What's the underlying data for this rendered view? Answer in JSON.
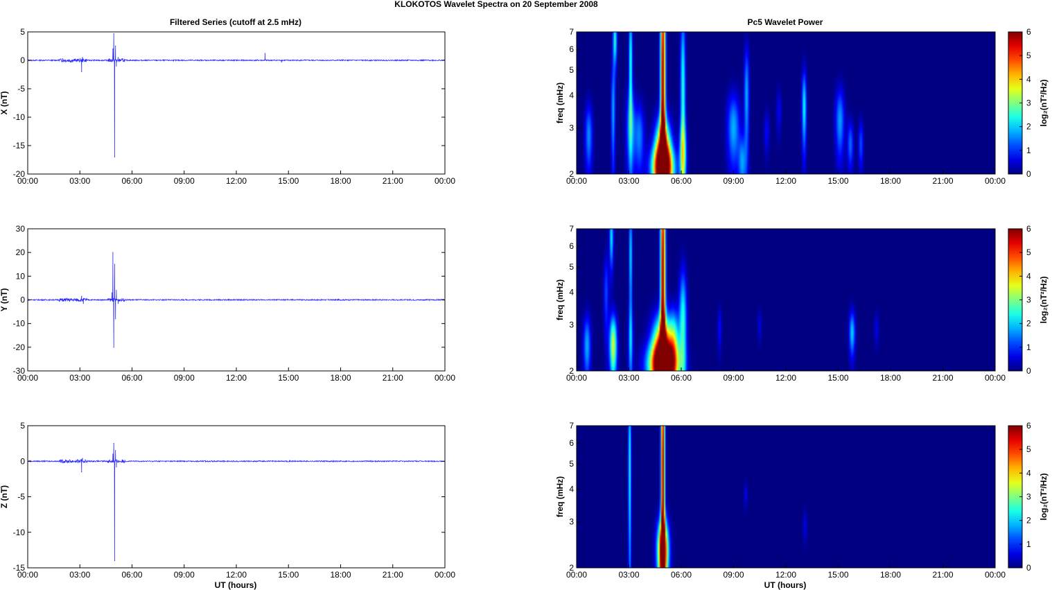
{
  "figure": {
    "title": "KLOKOTOS Wavelet Spectra on 20 September 2008",
    "left_column_title": "Filtered Series (cutoff at 2.5 mHz)",
    "right_column_title": "Pc5 Wavelet Power",
    "x_axis_label": "UT (hours)"
  },
  "colors": {
    "trace": "#2a2aff",
    "spectrum_background": "#00008f"
  },
  "chart_data": [
    {
      "id": "x-series",
      "type": "line",
      "ylabel": "X (nT)",
      "x_ticks": [
        "00:00",
        "03:00",
        "06:00",
        "09:00",
        "12:00",
        "15:00",
        "18:00",
        "21:00",
        "00:00"
      ],
      "xlim": [
        0,
        24
      ],
      "ylim": [
        -20,
        5
      ],
      "y_ticks": [
        5,
        0,
        -5,
        -10,
        -15,
        -20
      ],
      "grid": false,
      "series": [
        {
          "x": [
            0,
            2.0,
            2.5,
            3.1,
            3.15,
            3.2,
            4.9,
            4.95,
            5.0,
            5.05,
            5.1,
            5.2,
            5.3,
            13.6,
            13.65,
            14.6,
            24
          ],
          "values": [
            0,
            0.3,
            -0.3,
            -2.0,
            0.5,
            0,
            2.0,
            4.7,
            -17.0,
            2.5,
            -1.0,
            0.5,
            0,
            0,
            1.2,
            -0.3,
            0
          ]
        }
      ]
    },
    {
      "id": "y-series",
      "type": "line",
      "ylabel": "Y (nT)",
      "x_ticks": [
        "00:00",
        "03:00",
        "06:00",
        "09:00",
        "12:00",
        "15:00",
        "18:00",
        "21:00",
        "00:00"
      ],
      "xlim": [
        0,
        24
      ],
      "ylim": [
        -30,
        30
      ],
      "y_ticks": [
        30,
        20,
        10,
        0,
        -10,
        -20,
        -30
      ],
      "grid": false,
      "series": [
        {
          "x": [
            0,
            2.0,
            3.1,
            3.2,
            4.85,
            4.9,
            4.95,
            5.0,
            5.05,
            5.1,
            5.2,
            5.3,
            24
          ],
          "values": [
            0,
            -0.5,
            1.5,
            -1.5,
            3.0,
            20.0,
            -20.0,
            15.0,
            -8.0,
            4.0,
            -1.5,
            0,
            0
          ]
        }
      ]
    },
    {
      "id": "z-series",
      "type": "line",
      "ylabel": "Z (nT)",
      "x_ticks": [
        "00:00",
        "03:00",
        "06:00",
        "09:00",
        "12:00",
        "15:00",
        "18:00",
        "21:00",
        "00:00"
      ],
      "xlim": [
        0,
        24
      ],
      "ylim": [
        -15,
        5
      ],
      "y_ticks": [
        5,
        0,
        -5,
        -10,
        -15
      ],
      "grid": false,
      "series": [
        {
          "x": [
            0,
            3.1,
            3.15,
            3.2,
            4.9,
            4.95,
            5.0,
            5.05,
            5.1,
            5.2,
            24
          ],
          "values": [
            0,
            -1.5,
            0.4,
            0,
            1.0,
            2.5,
            -14.0,
            1.5,
            -0.8,
            0,
            0
          ]
        }
      ]
    },
    {
      "id": "x-spectrum",
      "type": "heatmap",
      "ylabel": "freq (mHz)",
      "colorbar_label": "log₂(nT²/Hz)",
      "colorbar_ticks": [
        6,
        5,
        4,
        3,
        2,
        1,
        0
      ],
      "clim": [
        0,
        6
      ],
      "ylim": [
        2,
        7
      ],
      "y_scale": "log",
      "y_ticks": [
        7,
        6,
        5,
        4,
        3,
        2
      ],
      "x_ticks": [
        "00:00",
        "03:00",
        "06:00",
        "09:00",
        "12:00",
        "15:00",
        "18:00",
        "21:00",
        "00:00"
      ],
      "xlim": [
        0,
        24
      ],
      "blobs": [
        {
          "t": 4.95,
          "dt": 0.1,
          "f": 4.5,
          "df": 5.0,
          "v": 6.0
        },
        {
          "t": 4.95,
          "dt": 0.3,
          "f": 2.3,
          "df": 0.6,
          "v": 6.0
        },
        {
          "t": 4.95,
          "dt": 0.45,
          "f": 2.1,
          "df": 0.3,
          "v": 4.5
        },
        {
          "t": 2.2,
          "dt": 0.08,
          "f": 6.5,
          "df": 1.0,
          "v": 2.5
        },
        {
          "t": 2.1,
          "dt": 0.08,
          "f": 3.5,
          "df": 1.2,
          "v": 1.8
        },
        {
          "t": 3.1,
          "dt": 0.07,
          "f": 5.5,
          "df": 2.0,
          "v": 2.5
        },
        {
          "t": 3.1,
          "dt": 0.18,
          "f": 3.0,
          "df": 0.8,
          "v": 1.8
        },
        {
          "t": 3.6,
          "dt": 0.2,
          "f": 2.8,
          "df": 0.6,
          "v": 1.5
        },
        {
          "t": 0.7,
          "dt": 0.15,
          "f": 2.8,
          "df": 0.6,
          "v": 1.6
        },
        {
          "t": 6.1,
          "dt": 0.1,
          "f": 4.0,
          "df": 2.8,
          "v": 2.5
        },
        {
          "t": 6.1,
          "dt": 0.15,
          "f": 2.4,
          "df": 0.5,
          "v": 2.0
        },
        {
          "t": 9.0,
          "dt": 0.25,
          "f": 3.0,
          "df": 0.7,
          "v": 1.8
        },
        {
          "t": 9.5,
          "dt": 0.15,
          "f": 2.2,
          "df": 0.4,
          "v": 1.6
        },
        {
          "t": 9.75,
          "dt": 0.1,
          "f": 4.0,
          "df": 1.4,
          "v": 1.8
        },
        {
          "t": 13.05,
          "dt": 0.09,
          "f": 3.6,
          "df": 0.9,
          "v": 2.3
        },
        {
          "t": 15.1,
          "dt": 0.18,
          "f": 3.2,
          "df": 0.7,
          "v": 1.7
        },
        {
          "t": 15.7,
          "dt": 0.12,
          "f": 2.6,
          "df": 0.4,
          "v": 1.4
        },
        {
          "t": 16.3,
          "dt": 0.1,
          "f": 2.6,
          "df": 0.4,
          "v": 1.2
        },
        {
          "t": 10.9,
          "dt": 0.1,
          "f": 2.9,
          "df": 0.4,
          "v": 0.8
        },
        {
          "t": 11.6,
          "dt": 0.1,
          "f": 3.5,
          "df": 0.5,
          "v": 0.7
        }
      ]
    },
    {
      "id": "y-spectrum",
      "type": "heatmap",
      "ylabel": "freq (mHz)",
      "colorbar_label": "log₂(nT²/Hz)",
      "colorbar_ticks": [
        6,
        5,
        4,
        3,
        2,
        1,
        0
      ],
      "clim": [
        0,
        6
      ],
      "ylim": [
        2,
        7
      ],
      "y_scale": "log",
      "y_ticks": [
        7,
        6,
        5,
        4,
        3,
        2
      ],
      "x_ticks": [
        "00:00",
        "03:00",
        "06:00",
        "09:00",
        "12:00",
        "15:00",
        "18:00",
        "21:00",
        "00:00"
      ],
      "xlim": [
        0,
        24
      ],
      "blobs": [
        {
          "t": 4.95,
          "dt": 0.1,
          "f": 4.5,
          "df": 5.0,
          "v": 6.0
        },
        {
          "t": 4.95,
          "dt": 0.4,
          "f": 2.3,
          "df": 0.6,
          "v": 6.0
        },
        {
          "t": 4.95,
          "dt": 0.6,
          "f": 2.1,
          "df": 0.3,
          "v": 4.5
        },
        {
          "t": 2.1,
          "dt": 0.15,
          "f": 2.5,
          "df": 0.5,
          "v": 3.5
        },
        {
          "t": 2.0,
          "dt": 0.08,
          "f": 6.5,
          "df": 1.2,
          "v": 2.2
        },
        {
          "t": 3.1,
          "dt": 0.06,
          "f": 5.5,
          "df": 2.0,
          "v": 2.2
        },
        {
          "t": 3.1,
          "dt": 0.1,
          "f": 2.6,
          "df": 0.6,
          "v": 1.5
        },
        {
          "t": 0.6,
          "dt": 0.15,
          "f": 2.5,
          "df": 0.5,
          "v": 1.8
        },
        {
          "t": 1.7,
          "dt": 0.1,
          "f": 4.0,
          "df": 1.0,
          "v": 1.2
        },
        {
          "t": 6.1,
          "dt": 0.15,
          "f": 3.0,
          "df": 1.2,
          "v": 2.5
        },
        {
          "t": 5.6,
          "dt": 0.2,
          "f": 2.5,
          "df": 0.6,
          "v": 2.2
        },
        {
          "t": 15.8,
          "dt": 0.12,
          "f": 2.8,
          "df": 0.4,
          "v": 2.0
        },
        {
          "t": 8.2,
          "dt": 0.08,
          "f": 2.9,
          "df": 0.4,
          "v": 0.8
        },
        {
          "t": 10.5,
          "dt": 0.08,
          "f": 3.0,
          "df": 0.3,
          "v": 0.6
        },
        {
          "t": 17.2,
          "dt": 0.1,
          "f": 2.9,
          "df": 0.3,
          "v": 0.6
        }
      ]
    },
    {
      "id": "z-spectrum",
      "type": "heatmap",
      "ylabel": "freq (mHz)",
      "colorbar_label": "log₂(nT²/Hz)",
      "colorbar_ticks": [
        6,
        5,
        4,
        3,
        2,
        1,
        0
      ],
      "clim": [
        0,
        6
      ],
      "ylim": [
        2,
        7
      ],
      "y_scale": "log",
      "y_ticks": [
        7,
        6,
        5,
        4,
        3,
        2
      ],
      "x_ticks": [
        "00:00",
        "03:00",
        "06:00",
        "09:00",
        "12:00",
        "15:00",
        "18:00",
        "21:00",
        "00:00"
      ],
      "xlim": [
        0,
        24
      ],
      "blobs": [
        {
          "t": 4.95,
          "dt": 0.08,
          "f": 4.5,
          "df": 5.0,
          "v": 6.0
        },
        {
          "t": 4.95,
          "dt": 0.22,
          "f": 2.3,
          "df": 0.5,
          "v": 6.0
        },
        {
          "t": 3.05,
          "dt": 0.06,
          "f": 5.0,
          "df": 3.0,
          "v": 2.5
        },
        {
          "t": 9.7,
          "dt": 0.08,
          "f": 3.8,
          "df": 0.3,
          "v": 0.6
        },
        {
          "t": 13.1,
          "dt": 0.08,
          "f": 2.9,
          "df": 0.3,
          "v": 0.6
        }
      ]
    }
  ]
}
